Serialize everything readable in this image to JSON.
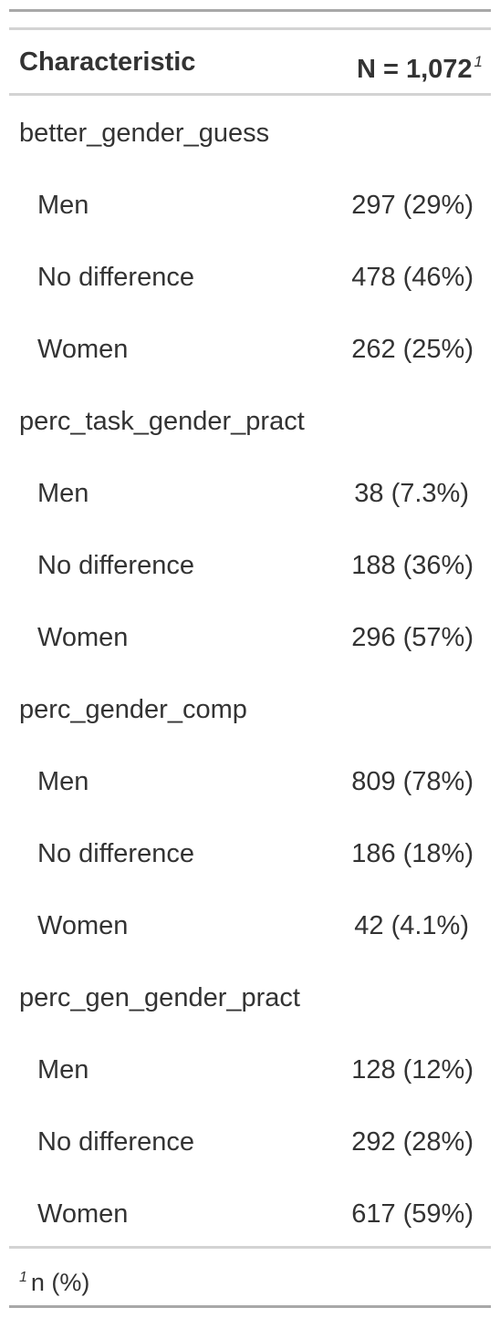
{
  "table": {
    "header": {
      "label": "Characteristic",
      "value": "N = 1,072",
      "value_footnote_mark": "1"
    },
    "groups": [
      {
        "label": "better_gender_guess",
        "rows": [
          {
            "label": "Men",
            "value": "297 (29%)"
          },
          {
            "label": "No difference",
            "value": "478 (46%)"
          },
          {
            "label": "Women",
            "value": "262 (25%)"
          }
        ]
      },
      {
        "label": "perc_task_gender_pract",
        "rows": [
          {
            "label": "Men",
            "value": "38 (7.3%)"
          },
          {
            "label": "No difference",
            "value": "188 (36%)"
          },
          {
            "label": "Women",
            "value": "296 (57%)"
          }
        ]
      },
      {
        "label": "perc_gender_comp",
        "rows": [
          {
            "label": "Men",
            "value": "809 (78%)"
          },
          {
            "label": "No difference",
            "value": "186 (18%)"
          },
          {
            "label": "Women",
            "value": "42 (4.1%)"
          }
        ]
      },
      {
        "label": "perc_gen_gender_pract",
        "rows": [
          {
            "label": "Men",
            "value": "128 (12%)"
          },
          {
            "label": "No difference",
            "value": "292 (28%)"
          },
          {
            "label": "Women",
            "value": "617 (59%)"
          }
        ]
      }
    ],
    "footnote": {
      "mark": "1",
      "text": "n (%)"
    }
  }
}
